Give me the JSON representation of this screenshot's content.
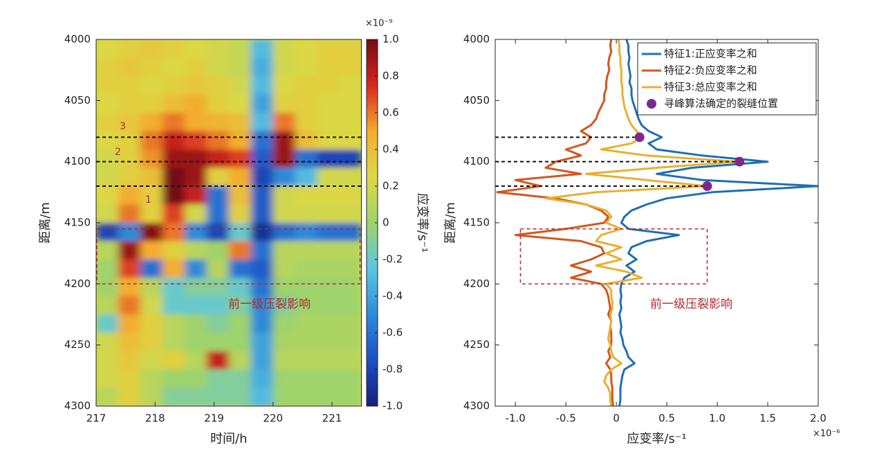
{
  "chart_data": [
    {
      "type": "heatmap",
      "xlabel": "时间/h",
      "ylabel": "距离/m",
      "colorbar_label": "应变率/s⁻¹",
      "colorbar_exponent": "×10⁻⁹",
      "xlim": [
        217,
        221.5
      ],
      "xticks": [
        217,
        218,
        219,
        220,
        221
      ],
      "ylim": [
        4000,
        4300
      ],
      "yticks": [
        4000,
        4050,
        4100,
        4150,
        4200,
        4250,
        4300
      ],
      "y_reversed": true,
      "zlim": [
        -1,
        1
      ],
      "zticks": [
        {
          "value": -1,
          "label": "-1.0"
        },
        -0.8,
        -0.6,
        -0.4,
        -0.2,
        0,
        0.2,
        0.4,
        0.6,
        0.8,
        {
          "value": 1,
          "label": "1.0"
        }
      ],
      "colormap": [
        "#17207a",
        "#1d4fc4",
        "#2f8ad8",
        "#5cc6e2",
        "#9fd36c",
        "#dcd845",
        "#f3ad2e",
        "#d8261e",
        "#720c12"
      ],
      "x_edges": [
        217,
        217.375,
        217.75,
        218.125,
        218.5,
        218.875,
        219.25,
        219.625,
        220,
        220.375,
        220.75,
        221.125,
        221.5
      ],
      "y_edges": [
        4000,
        4015,
        4030,
        4045,
        4060,
        4075,
        4090,
        4105,
        4120,
        4135,
        4150,
        4165,
        4180,
        4195,
        4210,
        4225,
        4240,
        4255,
        4270,
        4285,
        4300
      ],
      "z": [
        [
          0.25,
          0.3,
          0.35,
          0.3,
          0.25,
          0.2,
          0.15,
          -0.3,
          0.2,
          0.25,
          0.3,
          0.3
        ],
        [
          0.3,
          0.35,
          0.3,
          0.25,
          0.3,
          0.2,
          0.15,
          -0.35,
          0.2,
          0.25,
          0.3,
          0.3
        ],
        [
          0.3,
          0.3,
          0.25,
          0.3,
          0.35,
          0.3,
          0.2,
          -0.3,
          0.25,
          0.3,
          0.3,
          0.25
        ],
        [
          0.25,
          0.3,
          0.3,
          0.4,
          0.5,
          0.3,
          0.25,
          -0.4,
          0.3,
          0.3,
          0.25,
          0.25
        ],
        [
          0.3,
          0.35,
          0.5,
          0.6,
          0.5,
          0.45,
          0.4,
          -0.3,
          0.6,
          0.3,
          0.25,
          0.25
        ],
        [
          0.25,
          0.3,
          0.6,
          0.8,
          0.7,
          0.6,
          0.5,
          -0.6,
          0.9,
          0.4,
          0.25,
          0.25
        ],
        [
          0.2,
          0.3,
          0.55,
          0.9,
          0.9,
          0.8,
          0.7,
          -0.7,
          0.9,
          -0.6,
          -0.8,
          -0.8
        ],
        [
          0.2,
          0.3,
          0.4,
          1.0,
          0.9,
          0.3,
          0.5,
          -0.8,
          -0.5,
          -0.3,
          0.2,
          0.2
        ],
        [
          0.25,
          0.5,
          0.3,
          1.0,
          0.8,
          -0.6,
          0.4,
          -0.7,
          0.2,
          0.25,
          0.25,
          0.25
        ],
        [
          0.2,
          0.6,
          0.3,
          0.7,
          0.2,
          -0.6,
          0.3,
          -0.7,
          0.2,
          0.2,
          0.2,
          0.2
        ],
        [
          -0.8,
          -0.5,
          0.95,
          0.6,
          -0.5,
          -0.8,
          -0.2,
          -0.9,
          -0.6,
          -0.5,
          -0.6,
          -0.6
        ],
        [
          0.1,
          0.9,
          0.5,
          0.3,
          0.1,
          0.0,
          0.6,
          -0.6,
          0.1,
          0.1,
          0.1,
          0.1
        ],
        [
          0.0,
          0.7,
          -0.6,
          0.5,
          -0.5,
          0.1,
          -0.6,
          -0.7,
          0.1,
          0.05,
          0.05,
          0.05
        ],
        [
          0.0,
          0.5,
          0.1,
          -0.2,
          -0.1,
          -0.1,
          -0.2,
          -0.6,
          0.0,
          0.0,
          0.0,
          0.0
        ],
        [
          0.1,
          0.6,
          0.2,
          -0.2,
          -0.2,
          -0.2,
          -0.1,
          -0.5,
          -0.1,
          0.0,
          0.0,
          0.0
        ],
        [
          -0.2,
          0.5,
          0.3,
          0.1,
          0.0,
          -0.1,
          0.0,
          -0.5,
          0.0,
          0.05,
          0.05,
          0.05
        ],
        [
          0.2,
          0.4,
          0.3,
          0.1,
          0.0,
          0.0,
          0.0,
          -0.4,
          0.05,
          0.05,
          0.05,
          0.05
        ],
        [
          0.2,
          0.35,
          0.2,
          0.3,
          0.1,
          0.8,
          0.1,
          -0.4,
          0.1,
          0.1,
          0.1,
          0.1
        ],
        [
          0.2,
          0.3,
          0.1,
          0.0,
          0.0,
          -0.1,
          -0.1,
          -0.35,
          0.0,
          0.0,
          0.0,
          0.0
        ],
        [
          0.1,
          0.3,
          0.1,
          -0.1,
          -0.1,
          -0.1,
          -0.1,
          -0.3,
          0.0,
          0.0,
          0.0,
          0.0
        ]
      ],
      "hlines": [
        4080,
        4100,
        4120
      ],
      "hline_color": "#111111",
      "box": {
        "xlim": [
          217,
          221.5
        ],
        "ylim": [
          4155,
          4200
        ],
        "color": "#b02a30"
      },
      "annotations": [
        {
          "text": "3"
        },
        {
          "text": "2"
        },
        {
          "text": "1"
        },
        {
          "text": "前一级压裂影响"
        }
      ],
      "annotation_color": "#b02a30"
    },
    {
      "type": "line",
      "orientation": "horizontal",
      "xlabel": "应变率/s⁻¹",
      "x_exponent": "×10⁻⁶",
      "ylabel": "距离/m",
      "xlim": [
        -1.2,
        2.0
      ],
      "xticks": [
        {
          "value": -1,
          "label": "-1.0"
        },
        -0.5,
        0,
        0.5,
        {
          "value": 1,
          "label": "1.0"
        },
        1.5,
        {
          "value": 2,
          "label": "2.0"
        }
      ],
      "ylim": [
        4000,
        4300
      ],
      "yticks": [
        4000,
        4050,
        4100,
        4150,
        4200,
        4250,
        4300
      ],
      "y_reversed": true,
      "y": [
        4000,
        4005,
        4010,
        4015,
        4020,
        4025,
        4030,
        4035,
        4040,
        4045,
        4050,
        4055,
        4060,
        4065,
        4070,
        4075,
        4080,
        4085,
        4090,
        4095,
        4100,
        4105,
        4110,
        4115,
        4120,
        4125,
        4130,
        4135,
        4140,
        4145,
        4150,
        4155,
        4160,
        4165,
        4170,
        4175,
        4180,
        4185,
        4190,
        4195,
        4200,
        4205,
        4210,
        4215,
        4220,
        4225,
        4230,
        4235,
        4240,
        4245,
        4250,
        4255,
        4260,
        4265,
        4270,
        4275,
        4280,
        4285,
        4290,
        4295,
        4300
      ],
      "series": [
        {
          "name": "特征1:正应变率之和",
          "color": "#1f6fb0",
          "values": [
            0.1,
            0.12,
            0.12,
            0.13,
            0.12,
            0.13,
            0.14,
            0.13,
            0.15,
            0.15,
            0.16,
            0.18,
            0.2,
            0.22,
            0.25,
            0.32,
            0.45,
            0.32,
            0.4,
            0.85,
            1.5,
            0.75,
            0.4,
            0.85,
            2.0,
            0.95,
            0.5,
            0.3,
            0.15,
            0.08,
            0.05,
            0.12,
            0.62,
            0.3,
            0.15,
            0.12,
            0.2,
            0.1,
            0.18,
            0.08,
            0.05,
            0.04,
            0.05,
            0.04,
            0.05,
            0.03,
            0.04,
            0.05,
            0.04,
            0.06,
            0.07,
            0.1,
            0.12,
            0.18,
            0.08,
            0.06,
            0.05,
            0.04,
            0.04,
            0.04,
            0.03
          ]
        },
        {
          "name": "特征2:负应变率之和",
          "color": "#d4561c",
          "values": [
            -0.05,
            -0.06,
            -0.05,
            -0.07,
            -0.08,
            -0.07,
            -0.09,
            -0.1,
            -0.1,
            -0.12,
            -0.12,
            -0.15,
            -0.18,
            -0.2,
            -0.25,
            -0.35,
            -0.25,
            -0.3,
            -0.5,
            -0.35,
            -0.6,
            -0.7,
            -0.35,
            -1.0,
            -0.75,
            -1.18,
            -0.6,
            -0.3,
            -0.15,
            -0.08,
            -0.12,
            -0.5,
            -1.0,
            -0.35,
            -0.15,
            -0.12,
            -0.25,
            -0.45,
            -0.25,
            -0.45,
            -0.15,
            -0.1,
            -0.08,
            -0.07,
            -0.06,
            -0.08,
            -0.05,
            -0.06,
            -0.05,
            -0.05,
            -0.05,
            -0.08,
            -0.06,
            -0.1,
            -0.06,
            -0.05,
            -0.05,
            -0.04,
            -0.04,
            -0.04,
            -0.03
          ]
        },
        {
          "name": "特征3:总应变率之和",
          "color": "#e8b030",
          "values": [
            0.02,
            0.03,
            0.03,
            0.04,
            0.04,
            0.05,
            0.05,
            0.05,
            0.06,
            0.06,
            0.07,
            0.08,
            0.1,
            0.12,
            0.15,
            0.2,
            0.25,
            0.15,
            -0.15,
            0.3,
            1.2,
            0.4,
            -0.3,
            0.3,
            0.9,
            -0.2,
            -0.7,
            -0.3,
            -0.1,
            -0.05,
            -0.1,
            0.05,
            -0.15,
            -0.2,
            0.05,
            -0.1,
            0.05,
            -0.2,
            0.1,
            0.25,
            -0.1,
            -0.05,
            -0.05,
            -0.04,
            -0.04,
            -0.06,
            -0.05,
            -0.06,
            -0.07,
            -0.08,
            -0.06,
            -0.05,
            -0.03,
            0.05,
            -0.05,
            -0.1,
            -0.12,
            -0.08,
            -0.06,
            -0.06,
            -0.05
          ]
        }
      ],
      "peaks": {
        "name": "寻峰算法确定的裂缝位置",
        "color": "#7b2a8c",
        "values": [
          0.23,
          1.22,
          0.9
        ],
        "y": [
          4080,
          4100,
          4120
        ]
      },
      "peak_line_color": "#111111",
      "box": {
        "xlim": [
          -0.95,
          0.9
        ],
        "ylim": [
          4155,
          4200
        ],
        "color": "#b02a30"
      },
      "annotations": [
        {
          "text": "前一级压裂影响"
        }
      ],
      "annotation_color": "#b02a30",
      "legend": "upper right"
    }
  ]
}
